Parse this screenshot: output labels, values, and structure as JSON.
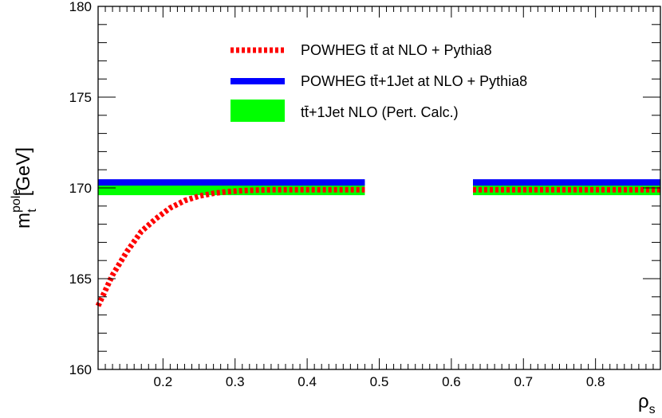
{
  "chart_data": {
    "type": "line",
    "title": "",
    "xlabel": {
      "main": "ρ",
      "sub": "s"
    },
    "ylabel": {
      "main": "m",
      "sub": "t",
      "sup": "pole",
      "unit": "[GeV]"
    },
    "xlim": [
      0.11,
      0.89
    ],
    "ylim": [
      160,
      180
    ],
    "x_ticks": [
      0.2,
      0.3,
      0.4,
      0.5,
      0.6,
      0.7,
      0.8
    ],
    "x_tick_labels": [
      "0.2",
      "0.3",
      "0.4",
      "0.5",
      "0.6",
      "0.7",
      "0.8"
    ],
    "y_ticks": [
      160,
      165,
      170,
      175,
      180
    ],
    "y_tick_labels": [
      "160",
      "165",
      "170",
      "175",
      "180"
    ],
    "grid": false,
    "legend_position": "top-right",
    "series": [
      {
        "name": "POWHEG tt̄ at NLO + Pythia8",
        "style": "dotted",
        "color": "#ff0000",
        "segments": [
          {
            "x": [
              0.11,
              0.13,
              0.15,
              0.17,
              0.19,
              0.21,
              0.23,
              0.25,
              0.27,
              0.29,
              0.31,
              0.33,
              0.35,
              0.38,
              0.41,
              0.44,
              0.48
            ],
            "y": [
              163.5,
              165.2,
              166.5,
              167.6,
              168.3,
              168.9,
              169.3,
              169.55,
              169.7,
              169.8,
              169.85,
              169.88,
              169.9,
              169.9,
              169.9,
              169.9,
              169.9
            ]
          },
          {
            "x": [
              0.63,
              0.89
            ],
            "y": [
              169.9,
              169.9
            ]
          }
        ]
      },
      {
        "name": "POWHEG tt̄+1Jet at NLO + Pythia8",
        "style": "solid",
        "color": "#0000ff",
        "segments": [
          {
            "x": [
              0.11,
              0.48
            ],
            "y": [
              170.3,
              170.3
            ]
          },
          {
            "x": [
              0.63,
              0.89
            ],
            "y": [
              170.3,
              170.3
            ]
          }
        ]
      },
      {
        "name": "tt̄+1Jet NLO (Pert. Calc.)",
        "style": "band",
        "color": "#00ff00",
        "value": 170.0,
        "band": [
          169.6,
          170.4
        ],
        "x_ranges": [
          [
            0.11,
            0.48
          ],
          [
            0.63,
            0.89
          ]
        ]
      }
    ]
  }
}
